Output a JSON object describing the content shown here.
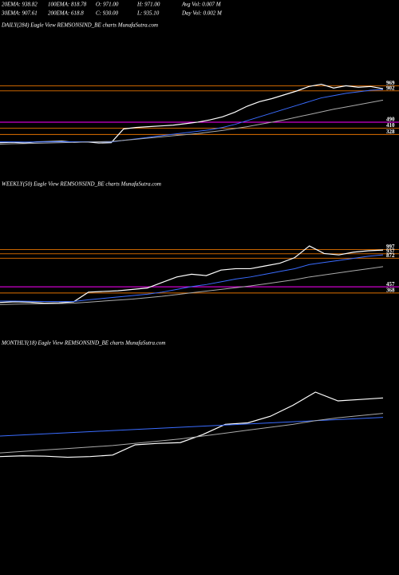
{
  "header": {
    "rows": [
      [
        "20EMA: 938.82",
        "100EMA: 818.78",
        "O: 971.00",
        "H: 971.00",
        "Avg Vol: 0.007 M"
      ],
      [
        "30EMA: 907.61",
        "200EMA: 618.8",
        "C: 930.00",
        "L: 935.10",
        "Day Vol: 0.002 M"
      ]
    ]
  },
  "chart_data": [
    {
      "type": "line",
      "title": "DAILY(284) Eagle   View  REMSONSIND_BE charts MunafaSutra.com",
      "ylim": [
        100,
        1100
      ],
      "levels": [
        {
          "value": 969,
          "color": "#c86400"
        },
        {
          "value": 902,
          "color": "#c86400"
        },
        {
          "value": 490,
          "color": "#ff00ff"
        },
        {
          "value": 410,
          "color": "#c86400"
        },
        {
          "value": 328,
          "color": "#e07000"
        }
      ],
      "series": [
        {
          "color": "#ffffff",
          "values": [
            220,
            225,
            215,
            230,
            235,
            240,
            225,
            230,
            215,
            220,
            400,
            420,
            430,
            440,
            450,
            470,
            490,
            520,
            560,
            620,
            700,
            760,
            800,
            850,
            900,
            960,
            990,
            940,
            970,
            950,
            960,
            930
          ]
        },
        {
          "color": "#3a6cff",
          "values": [
            230,
            230,
            228,
            229,
            230,
            232,
            232,
            232,
            230,
            229,
            250,
            270,
            290,
            310,
            330,
            350,
            370,
            390,
            420,
            460,
            510,
            560,
            610,
            660,
            710,
            760,
            810,
            840,
            870,
            890,
            910,
            920
          ]
        },
        {
          "color": "#aaaaaa",
          "values": [
            200,
            205,
            208,
            212,
            216,
            220,
            224,
            228,
            232,
            236,
            250,
            265,
            280,
            295,
            310,
            325,
            340,
            360,
            380,
            405,
            430,
            460,
            490,
            520,
            555,
            590,
            625,
            660,
            690,
            720,
            750,
            780
          ]
        }
      ]
    },
    {
      "type": "line",
      "title": "WEEKLY(50) Eagle   View  REMSONSIND_BE charts MunafaSutra.com",
      "ylim": [
        100,
        1200
      ],
      "levels": [
        {
          "value": 997,
          "color": "#c86400"
        },
        {
          "value": 937,
          "color": "#c86400"
        },
        {
          "value": 872,
          "color": "#c86400"
        },
        {
          "value": 457,
          "color": "#ff00ff"
        },
        {
          "value": 368,
          "color": "#e07000"
        }
      ],
      "series": [
        {
          "color": "#ffffff",
          "values": [
            230,
            240,
            235,
            220,
            225,
            240,
            380,
            390,
            400,
            420,
            440,
            520,
            600,
            640,
            620,
            700,
            720,
            720,
            760,
            800,
            880,
            1050,
            940,
            920,
            960,
            980,
            990
          ]
        },
        {
          "color": "#3a6cff",
          "values": [
            250,
            250,
            248,
            245,
            243,
            245,
            270,
            290,
            310,
            330,
            350,
            380,
            420,
            460,
            490,
            530,
            570,
            600,
            640,
            680,
            720,
            780,
            810,
            840,
            870,
            900,
            920
          ]
        },
        {
          "color": "#aaaaaa",
          "values": [
            200,
            205,
            210,
            212,
            215,
            220,
            235,
            250,
            265,
            280,
            300,
            320,
            345,
            370,
            395,
            420,
            445,
            470,
            500,
            530,
            560,
            600,
            630,
            660,
            690,
            720,
            750
          ]
        }
      ]
    },
    {
      "type": "line",
      "title": "MONTHLY(18) Eagle   View  REMSONSIND_BE charts MunafaSutra.com",
      "ylim": [
        0,
        1200
      ],
      "levels": [],
      "series": [
        {
          "color": "#ffffff",
          "values": [
            200,
            210,
            205,
            190,
            200,
            220,
            360,
            380,
            390,
            500,
            640,
            660,
            750,
            900,
            1080,
            960,
            980,
            1000
          ]
        },
        {
          "color": "#3a6cff",
          "values": [
            480,
            495,
            510,
            525,
            540,
            555,
            570,
            585,
            600,
            615,
            630,
            645,
            660,
            675,
            690,
            705,
            720,
            735
          ]
        },
        {
          "color": "#aaaaaa",
          "values": [
            250,
            270,
            290,
            310,
            330,
            350,
            380,
            410,
            440,
            480,
            520,
            560,
            600,
            640,
            690,
            730,
            760,
            790
          ]
        }
      ]
    }
  ]
}
